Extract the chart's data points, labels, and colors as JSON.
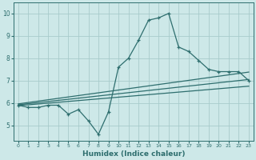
{
  "x": [
    0,
    1,
    2,
    3,
    4,
    5,
    6,
    7,
    8,
    9,
    10,
    11,
    12,
    13,
    14,
    15,
    16,
    17,
    18,
    19,
    20,
    21,
    22,
    23
  ],
  "y_main": [
    5.9,
    5.8,
    5.8,
    5.9,
    5.9,
    5.5,
    5.7,
    5.2,
    4.6,
    5.6,
    7.6,
    8.0,
    8.8,
    9.7,
    9.8,
    10.0,
    8.5,
    8.3,
    7.9,
    7.5,
    7.4,
    7.4,
    7.4,
    7.0
  ],
  "trend1": [
    5.88,
    6.75
  ],
  "trend2": [
    5.92,
    7.05
  ],
  "trend3": [
    5.96,
    7.38
  ],
  "trend_x": [
    0,
    23
  ],
  "xlim": [
    -0.5,
    23.5
  ],
  "ylim": [
    4.3,
    10.5
  ],
  "yticks": [
    5,
    6,
    7,
    8,
    9,
    10
  ],
  "xticks": [
    0,
    1,
    2,
    3,
    4,
    5,
    6,
    7,
    8,
    9,
    10,
    11,
    12,
    13,
    14,
    15,
    16,
    17,
    18,
    19,
    20,
    21,
    22,
    23
  ],
  "xlabel": "Humidex (Indice chaleur)",
  "line_color": "#2e6e6e",
  "bg_color": "#cde8e8",
  "grid_color": "#a8cccc",
  "marker": "+"
}
